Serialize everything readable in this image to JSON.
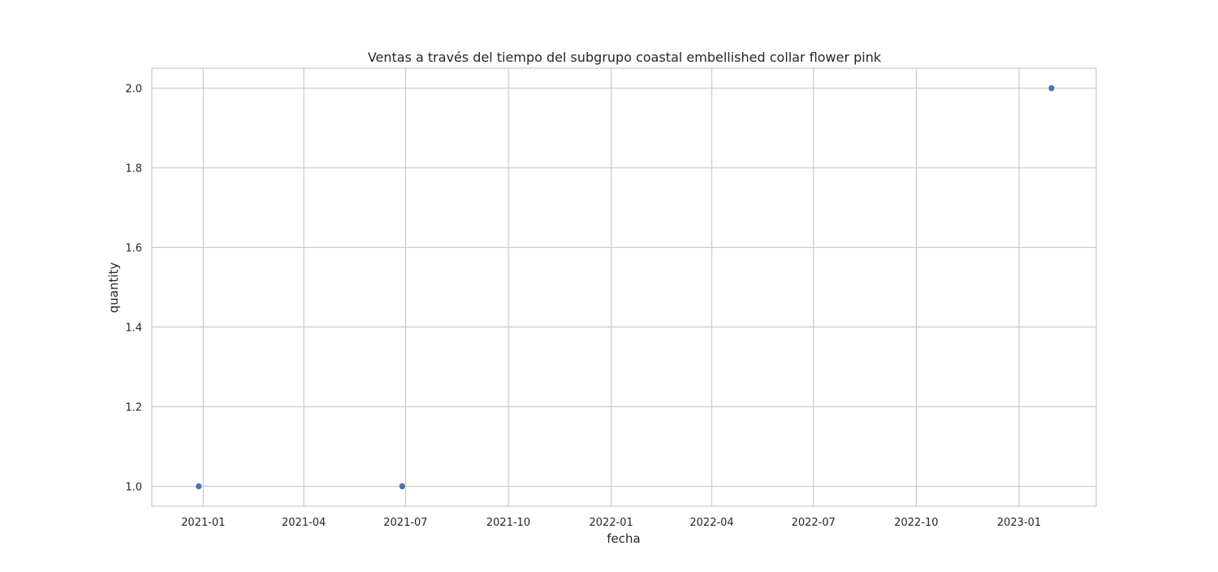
{
  "chart_data": {
    "type": "scatter",
    "title": "Ventas a través del tiempo del subgrupo coastal embellished collar flower pink",
    "xlabel": "fecha",
    "ylabel": "quantity",
    "x_type": "date",
    "xlim": [
      "2020-11-16",
      "2023-03-11"
    ],
    "ylim": [
      0.95,
      2.05
    ],
    "x_ticks": [
      "2021-01",
      "2021-04",
      "2021-07",
      "2021-10",
      "2022-01",
      "2022-04",
      "2022-07",
      "2022-10",
      "2023-01"
    ],
    "y_ticks": [
      "1.0",
      "1.2",
      "1.4",
      "1.6",
      "1.8",
      "2.0"
    ],
    "points": [
      {
        "x": "2020-12-28",
        "y": 1
      },
      {
        "x": "2021-06-28",
        "y": 1
      },
      {
        "x": "2023-01-30",
        "y": 2
      }
    ],
    "grid": true,
    "marker_color": "#4c72b0",
    "grid_color": "#cccccc",
    "frame_color": "#cccccc"
  }
}
